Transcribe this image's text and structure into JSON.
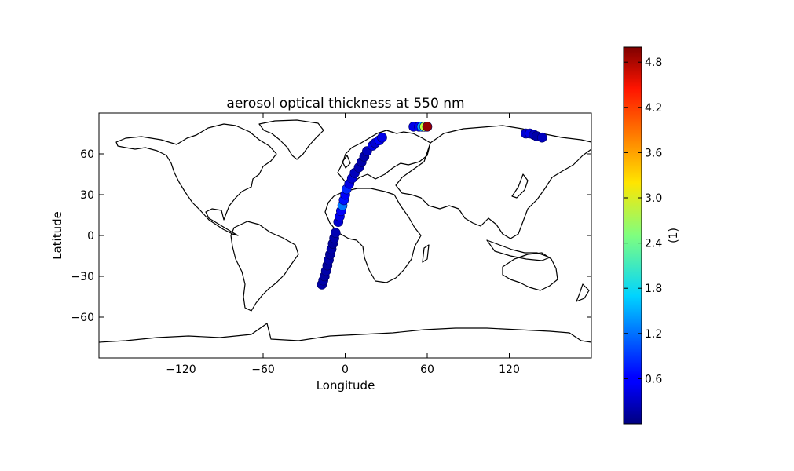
{
  "chart_data": {
    "type": "scatter",
    "title": "aerosol optical thickness at 550 nm",
    "xlabel": "Longitude",
    "ylabel": "Latitude",
    "xlim": [
      -180,
      180
    ],
    "ylim": [
      -90,
      90
    ],
    "xticks": [
      -120,
      -60,
      0,
      60,
      120
    ],
    "yticks": [
      -60,
      -30,
      0,
      30,
      60
    ],
    "xtick_labels": [
      "−120",
      "−60",
      "0",
      "60",
      "120"
    ],
    "ytick_labels": [
      "−60",
      "−30",
      "0",
      "30",
      "60"
    ],
    "grid": false,
    "colormap": "jet",
    "colorbar": {
      "label": "(1)",
      "min": 0.0,
      "max": 5.0,
      "ticks": [
        0.6,
        1.2,
        1.8,
        2.4,
        3.0,
        3.6,
        4.2,
        4.8
      ],
      "tick_labels": [
        "0.6",
        "1.2",
        "1.8",
        "2.4",
        "3.0",
        "3.6",
        "4.2",
        "4.8"
      ],
      "placement": "right"
    },
    "series": [
      {
        "values": [
          {
            "x": -17,
            "y": -36,
            "v": 0.2
          },
          {
            "x": -16,
            "y": -33,
            "v": 0.2
          },
          {
            "x": -15,
            "y": -30,
            "v": 0.15
          },
          {
            "x": -14,
            "y": -26,
            "v": 0.2
          },
          {
            "x": -13,
            "y": -22,
            "v": 0.15
          },
          {
            "x": -12,
            "y": -18,
            "v": 0.2
          },
          {
            "x": -11,
            "y": -14,
            "v": 0.15
          },
          {
            "x": -10,
            "y": -10,
            "v": 0.2
          },
          {
            "x": -9,
            "y": -6,
            "v": 0.15
          },
          {
            "x": -8,
            "y": -2,
            "v": 0.2
          },
          {
            "x": -7,
            "y": 2,
            "v": 0.25
          },
          {
            "x": -5,
            "y": 10,
            "v": 0.4
          },
          {
            "x": -4,
            "y": 14,
            "v": 0.5
          },
          {
            "x": -3,
            "y": 18,
            "v": 0.6
          },
          {
            "x": -2,
            "y": 22,
            "v": 1.2
          },
          {
            "x": -1,
            "y": 26,
            "v": 0.7
          },
          {
            "x": 0,
            "y": 30,
            "v": 0.6
          },
          {
            "x": 1,
            "y": 34,
            "v": 0.8
          },
          {
            "x": 3,
            "y": 38,
            "v": 0.5
          },
          {
            "x": 5,
            "y": 42,
            "v": 0.4
          },
          {
            "x": 7,
            "y": 46,
            "v": 0.3
          },
          {
            "x": 10,
            "y": 50,
            "v": 0.25
          },
          {
            "x": 12,
            "y": 54,
            "v": 0.2
          },
          {
            "x": 14,
            "y": 58,
            "v": 0.2
          },
          {
            "x": 16,
            "y": 62,
            "v": 0.3
          },
          {
            "x": 20,
            "y": 66,
            "v": 0.5
          },
          {
            "x": 22,
            "y": 68,
            "v": 0.4
          },
          {
            "x": 25,
            "y": 70,
            "v": 0.6
          },
          {
            "x": 27,
            "y": 72,
            "v": 0.5
          },
          {
            "x": 50,
            "y": 80,
            "v": 0.5
          },
          {
            "x": 54,
            "y": 80,
            "v": 0.6
          },
          {
            "x": 56,
            "y": 80,
            "v": 1.4
          },
          {
            "x": 58,
            "y": 80,
            "v": 2.8
          },
          {
            "x": 60,
            "y": 80,
            "v": 4.9
          },
          {
            "x": 132,
            "y": 75,
            "v": 0.4
          },
          {
            "x": 135,
            "y": 75,
            "v": 0.5
          },
          {
            "x": 138,
            "y": 74,
            "v": 0.3
          },
          {
            "x": 140,
            "y": 73,
            "v": 0.2
          },
          {
            "x": 144,
            "y": 72,
            "v": 0.3
          }
        ]
      }
    ]
  }
}
